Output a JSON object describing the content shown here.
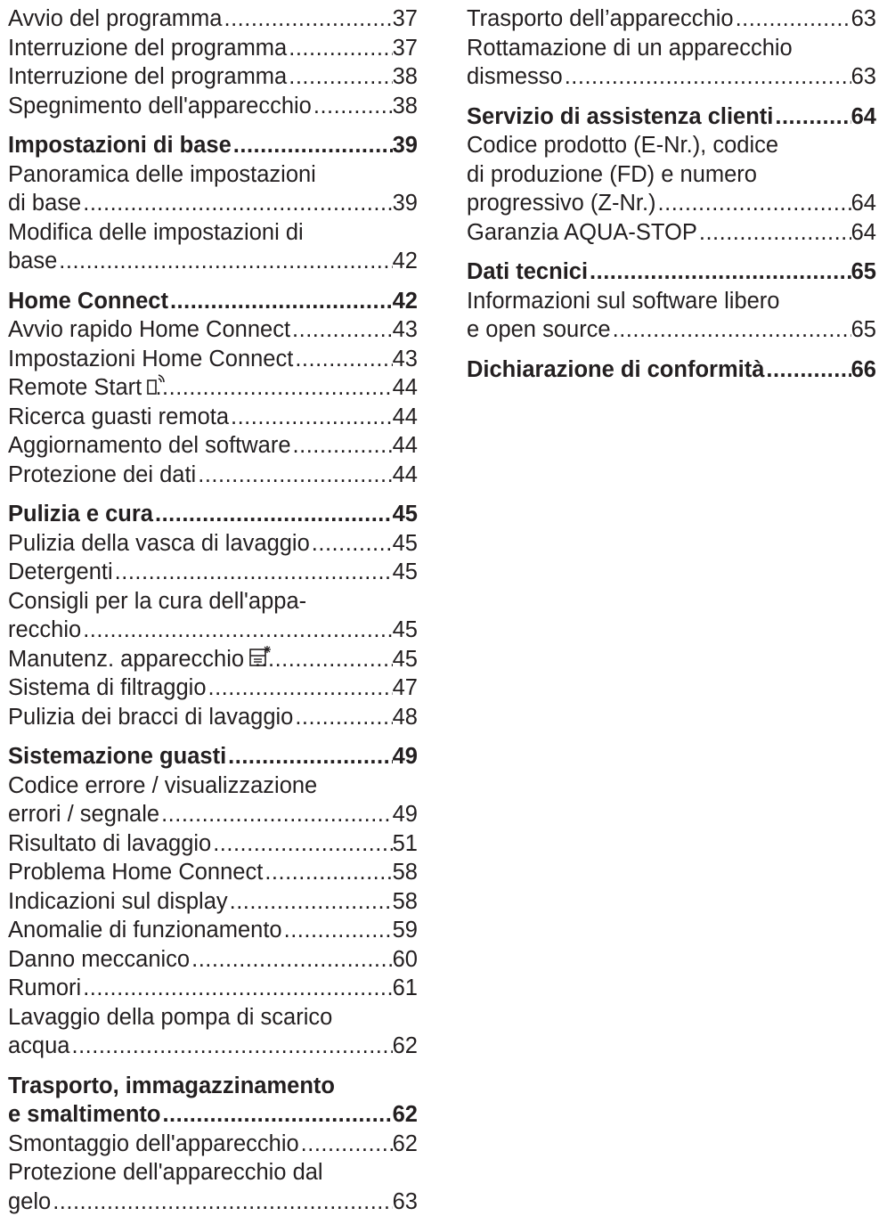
{
  "left": [
    {
      "kind": "entry",
      "lines": [
        "Avvio del programma"
      ],
      "page": "37"
    },
    {
      "kind": "entry",
      "lines": [
        "Interruzione del programma"
      ],
      "page": "37"
    },
    {
      "kind": "entry",
      "lines": [
        "Interruzione del programma"
      ],
      "page": "38"
    },
    {
      "kind": "entry",
      "lines": [
        "Spegnimento dell'apparecchio"
      ],
      "page": "38"
    },
    {
      "kind": "chapter",
      "lines": [
        "Impostazioni di base"
      ],
      "page": "39"
    },
    {
      "kind": "entry",
      "lines": [
        "Panoramica delle impostazioni",
        "di base"
      ],
      "page": "39"
    },
    {
      "kind": "entry",
      "lines": [
        "Modifica delle impostazioni di",
        "base"
      ],
      "page": "42"
    },
    {
      "kind": "chapter",
      "lines": [
        "Home Connect "
      ],
      "page": "42"
    },
    {
      "kind": "entry",
      "lines": [
        "Avvio rapido Home Connect"
      ],
      "page": "43"
    },
    {
      "kind": "entry",
      "lines": [
        "Impostazioni Home Connect"
      ],
      "page": "43"
    },
    {
      "kind": "entry",
      "lines": [
        "Remote Start"
      ],
      "icon": "remote-start-icon",
      "page": "44"
    },
    {
      "kind": "entry",
      "lines": [
        "Ricerca guasti remota "
      ],
      "page": "44"
    },
    {
      "kind": "entry",
      "lines": [
        "Aggiornamento del software"
      ],
      "page": "44"
    },
    {
      "kind": "entry",
      "lines": [
        "Protezione dei dati "
      ],
      "page": "44"
    },
    {
      "kind": "chapter",
      "lines": [
        "Pulizia e cura"
      ],
      "page": "45"
    },
    {
      "kind": "entry",
      "lines": [
        "Pulizia della vasca di lavaggio"
      ],
      "page": "45"
    },
    {
      "kind": "entry",
      "lines": [
        "Detergenti"
      ],
      "page": "45"
    },
    {
      "kind": "entry",
      "lines": [
        "Consigli per la cura dell'appa-",
        "recchio"
      ],
      "page": "45"
    },
    {
      "kind": "entry",
      "lines": [
        "Manutenz. apparecchio"
      ],
      "icon": "machine-care-icon",
      "page": "45"
    },
    {
      "kind": "entry",
      "lines": [
        "Sistema di filtraggio"
      ],
      "page": "47"
    },
    {
      "kind": "entry",
      "lines": [
        "Pulizia dei bracci di lavaggio "
      ],
      "page": "48"
    },
    {
      "kind": "chapter",
      "lines": [
        "Sistemazione guasti"
      ],
      "page": "49"
    },
    {
      "kind": "entry",
      "lines": [
        "Codice errore / visualizzazione",
        "errori / segnale"
      ],
      "page": "49"
    },
    {
      "kind": "entry",
      "lines": [
        "Risultato di lavaggio"
      ],
      "page": "51"
    },
    {
      "kind": "entry",
      "lines": [
        "Problema Home Connect"
      ],
      "page": "58"
    },
    {
      "kind": "entry",
      "lines": [
        "Indicazioni sul display "
      ],
      "page": "58"
    },
    {
      "kind": "entry",
      "lines": [
        "Anomalie di funzionamento"
      ],
      "page": "59"
    },
    {
      "kind": "entry",
      "lines": [
        "Danno meccanico "
      ],
      "page": "60"
    },
    {
      "kind": "entry",
      "lines": [
        "Rumori"
      ],
      "page": "61"
    },
    {
      "kind": "entry",
      "lines": [
        "Lavaggio della pompa di scarico",
        "acqua"
      ],
      "page": "62"
    },
    {
      "kind": "chapter",
      "lines": [
        "Trasporto, immagazzinamento",
        "e smaltimento"
      ],
      "page": "62"
    },
    {
      "kind": "entry",
      "lines": [
        "Smontaggio dell'apparecchio "
      ],
      "page": "62"
    },
    {
      "kind": "entry",
      "lines": [
        "Protezione dell'apparecchio dal",
        "gelo"
      ],
      "page": "63"
    }
  ],
  "right": [
    {
      "kind": "entry",
      "lines": [
        "Trasporto dell’apparecchio "
      ],
      "page": "63"
    },
    {
      "kind": "entry",
      "lines": [
        "Rottamazione di un apparecchio",
        "dismesso"
      ],
      "page": "63"
    },
    {
      "kind": "chapter",
      "lines": [
        "Servizio di assistenza clienti"
      ],
      "page": "64"
    },
    {
      "kind": "entry",
      "lines": [
        "Codice prodotto (E-Nr.), codice",
        "di produzione (FD) e numero",
        "progressivo (Z-Nr.)"
      ],
      "page": "64"
    },
    {
      "kind": "entry",
      "lines": [
        "Garanzia AQUA-STOP"
      ],
      "page": "64"
    },
    {
      "kind": "chapter",
      "lines": [
        "Dati tecnici"
      ],
      "page": "65"
    },
    {
      "kind": "entry",
      "lines": [
        "Informazioni sul software libero",
        "e open source"
      ],
      "page": "65"
    },
    {
      "kind": "chapter",
      "lines": [
        "Dichiarazione di conformità "
      ],
      "page": "66"
    }
  ],
  "leader": "......................................................................................................"
}
